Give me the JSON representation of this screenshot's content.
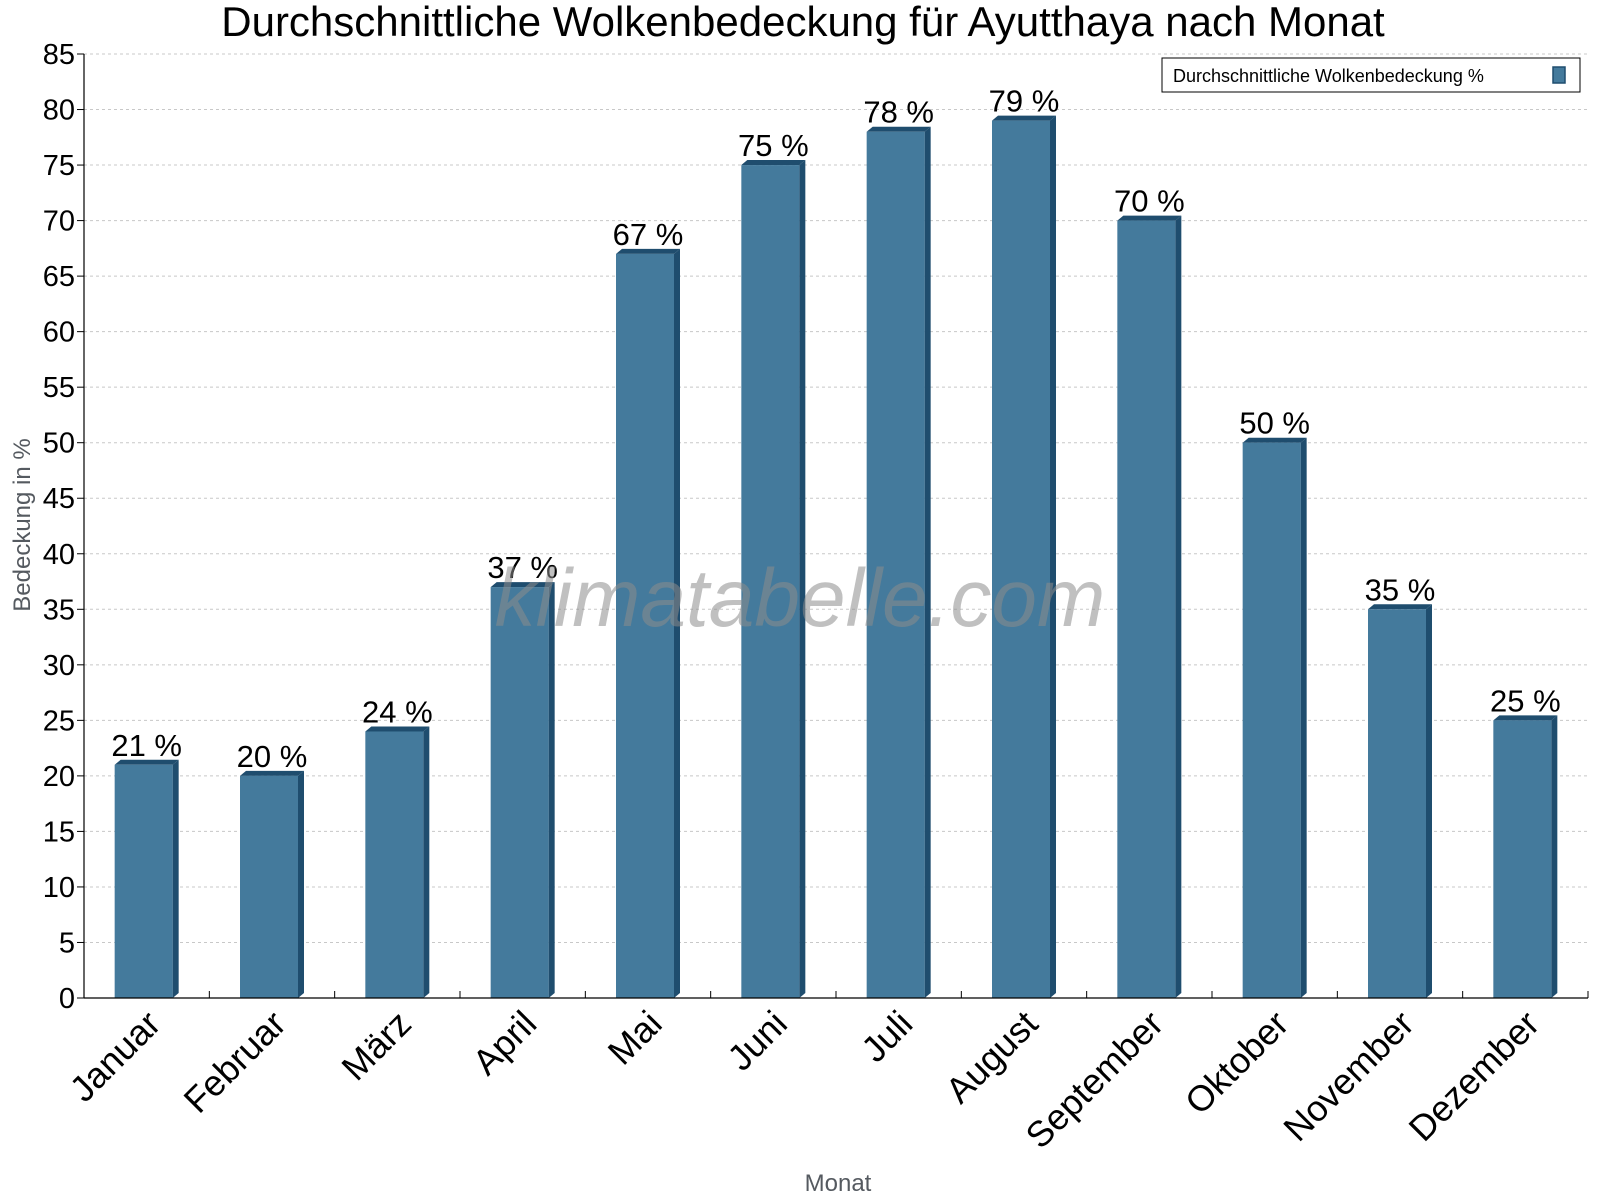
{
  "watermark": "klimatabelle.com",
  "colors": {
    "bar_face": "#447a9c",
    "bar_side": "#1f4d6e",
    "bar_top": "#1f4d6e",
    "grid": "#c8c8c8",
    "axis": "#000000"
  },
  "chart_data": {
    "type": "bar",
    "title": "Durchschnittliche Wolkenbedeckung für Ayutthaya nach Monat",
    "xlabel": "Monat",
    "ylabel": "Bedeckung in %",
    "categories": [
      "Januar",
      "Februar",
      "März",
      "April",
      "Mai",
      "Juni",
      "Juli",
      "August",
      "September",
      "Oktober",
      "November",
      "Dezember"
    ],
    "series": [
      {
        "name": "Durchschnittliche Wolkenbedeckung %",
        "values": [
          21,
          20,
          24,
          37,
          67,
          75,
          78,
          79,
          70,
          50,
          35,
          25
        ]
      }
    ],
    "data_labels": [
      "21 %",
      "20 %",
      "24 %",
      "37 %",
      "67 %",
      "75 %",
      "78 %",
      "79 %",
      "70 %",
      "50 %",
      "35 %",
      "25 %"
    ],
    "ylim": [
      0,
      85
    ],
    "ytick_step": 5,
    "grid": true,
    "legend_position": "top-right"
  }
}
